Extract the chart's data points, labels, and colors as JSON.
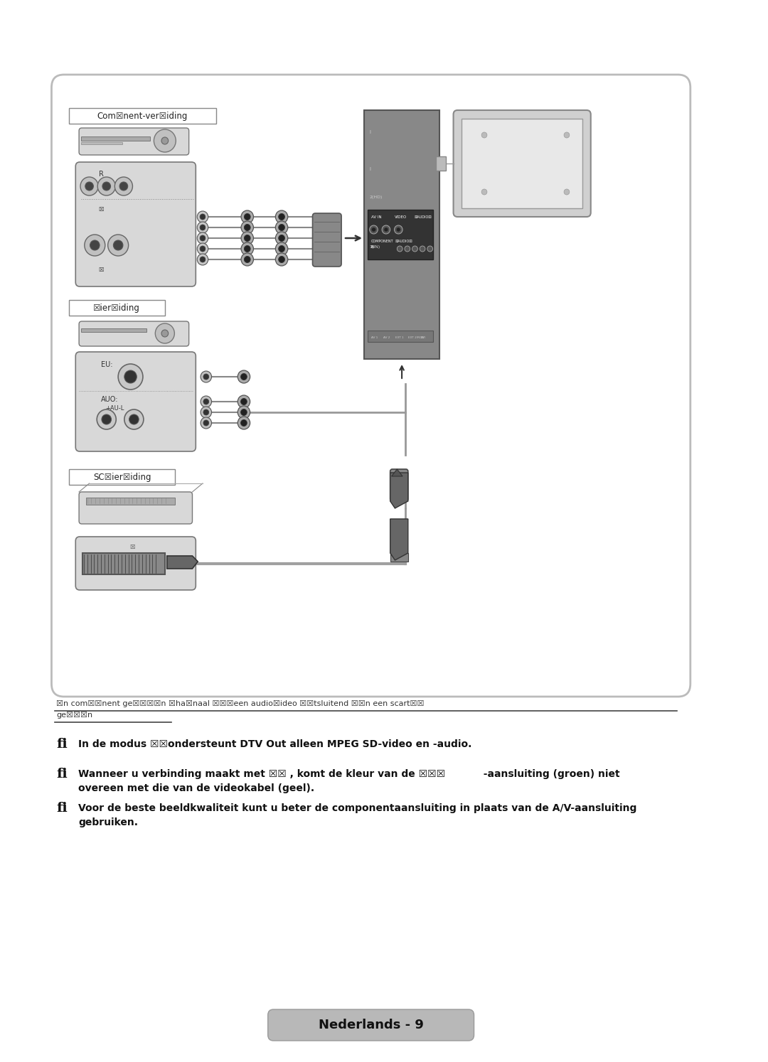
{
  "bg_color": "#ffffff",
  "border_color": "#bbbbbb",
  "page_number_text": "Nederlands - 9",
  "page_number_bg": "#b8b8b8",
  "label_component": "Com☒nent-ver☒iding",
  "label_av": "☒ier☒iding",
  "label_scart": "SC☒ier☒iding",
  "separator_text": "☒n com☒☒nent ge☒☒☒☒n ☒ha☒naal ☒☒☒een audio☒ideo ☒☒tsluitend ☒☒n een scart☒☒",
  "separator_text2": "ge☒☒☒n",
  "note1": "In de modus ☒☒ondersteunt DTV Out alleen MPEG SD-video en -audio.",
  "note2a": "Wanneer u verbinding maakt met ☒☒ , komt de kleur van de ☒☒☒           -aansluiting (groen) niet",
  "note2b": "overeen met die van de videokabel (geel).",
  "note3a": "Voor de beste beeldkwaliteit kunt u beter de componentaansluiting in plaats van de A/V-aansluiting",
  "note3b": "gebruiken."
}
